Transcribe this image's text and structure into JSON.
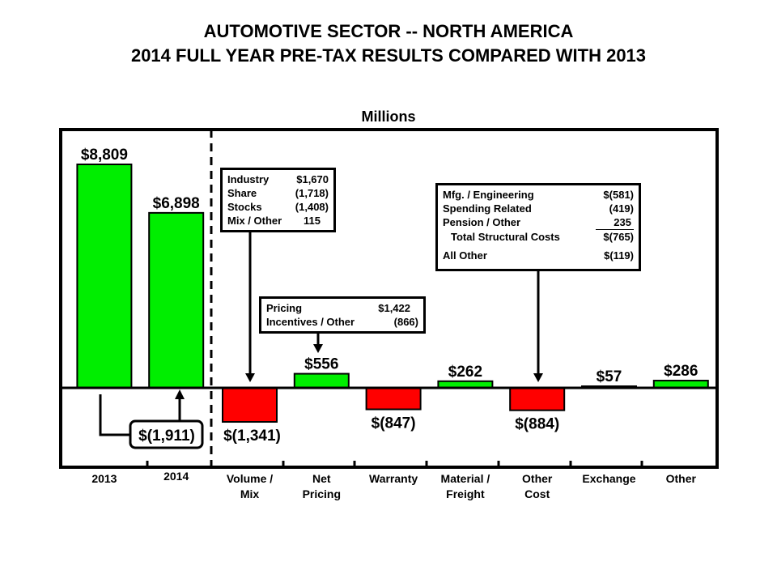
{
  "chart_data": {
    "type": "bar",
    "subtype": "waterfall",
    "title": "AUTOMOTIVE SECTOR -- NORTH AMERICA",
    "subtitle": "2014 FULL YEAR PRE-TAX RESULTS COMPARED WITH 2013",
    "units": "Millions",
    "xlabel": "",
    "ylabel": "",
    "grid": false,
    "colors": {
      "positive": "#00ee00",
      "negative": "#ff0000",
      "outline": "#000000"
    },
    "categories": [
      "2013",
      "2014",
      "Volume / Mix",
      "Net Pricing",
      "Warranty",
      "Material / Freight",
      "Other Cost",
      "Exchange",
      "Other"
    ],
    "category_lines": [
      [
        "2013"
      ],
      [
        "2014"
      ],
      [
        "Volume /",
        "Mix"
      ],
      [
        "Net",
        "Pricing"
      ],
      [
        "Warranty"
      ],
      [
        "Material /",
        "Freight"
      ],
      [
        "Other",
        "Cost"
      ],
      [
        "Exchange"
      ],
      [
        "Other"
      ]
    ],
    "values": [
      8809,
      6898,
      -1341,
      556,
      -847,
      262,
      -884,
      57,
      286
    ],
    "value_labels": [
      "$8,809",
      "$6,898",
      "$(1,341)",
      "$556",
      "$(847)",
      "$262",
      "$(884)",
      "$57",
      "$286"
    ],
    "change_annotation": {
      "label": "$(1,911)",
      "value": -1911,
      "from": "2013",
      "to": "2014"
    },
    "callouts": {
      "volume_mix": {
        "rows": [
          {
            "label": "Industry",
            "value": "$1,670"
          },
          {
            "label": "Share",
            "value": "(1,718)"
          },
          {
            "label": "Stocks",
            "value": "(1,408)"
          },
          {
            "label": "Mix / Other",
            "value": "115"
          }
        ]
      },
      "net_pricing": {
        "rows": [
          {
            "label": "Pricing",
            "value": "$1,422"
          },
          {
            "label": "Incentives / Other",
            "value": "(866)"
          }
        ]
      },
      "other_cost": {
        "rows": [
          {
            "label": "Mfg. / Engineering",
            "value": "$(581)"
          },
          {
            "label": "Spending Related",
            "value": "(419)"
          },
          {
            "label": "Pension / Other",
            "value": "235"
          },
          {
            "label": "Total Structural Costs",
            "value": "$(765)"
          },
          {
            "label": "All Other",
            "value": "$(119)"
          }
        ]
      }
    }
  }
}
